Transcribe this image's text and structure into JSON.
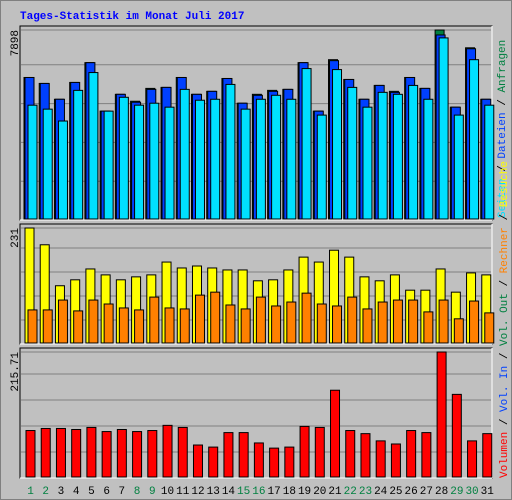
{
  "chart_data": [
    {
      "type": "bar",
      "title": "Tages-Statistik im Monat Juli 2017",
      "title_color": "#0000ff",
      "ylim": [
        0,
        7898
      ],
      "yticks": [
        7898
      ],
      "series": [
        {
          "name": "Anfragen",
          "color": "#008040",
          "values": [
            5903,
            5653,
            4988,
            5695,
            6526,
            4490,
            5196,
            4905,
            5445,
            5487,
            5903,
            5196,
            5321,
            5861,
            4822,
            5196,
            5362,
            5404,
            6526,
            4490,
            6651,
            5820,
            4988,
            5570,
            5321,
            5903,
            5445,
            7898,
            4656,
            7150,
            4988
          ]
        },
        {
          "name": "Dateien",
          "color": "#0040ff",
          "values": [
            5903,
            5653,
            4988,
            5695,
            6526,
            4490,
            5196,
            4864,
            5404,
            5487,
            5903,
            5196,
            5321,
            5861,
            4822,
            5155,
            5321,
            5404,
            6526,
            4490,
            6610,
            5820,
            4988,
            5570,
            5279,
            5903,
            5445,
            7690,
            4656,
            7110,
            4988
          ]
        },
        {
          "name": "Seiten",
          "color": "#00e0ff",
          "values": [
            4739,
            4573,
            4074,
            5362,
            6110,
            4490,
            5071,
            4739,
            4822,
            4656,
            5404,
            4947,
            4988,
            5612,
            4573,
            4988,
            5155,
            4988,
            6277,
            4323,
            6235,
            5487,
            4656,
            5279,
            5196,
            5570,
            4988,
            7566,
            4323,
            6651,
            4739
          ]
        }
      ]
    },
    {
      "type": "bar",
      "ylim": [
        0,
        231
      ],
      "yticks": [
        231
      ],
      "series": [
        {
          "name": "Besuche",
          "color": "#ffff00",
          "values": [
            231,
            197,
            114,
            126,
            148,
            136,
            126,
            132,
            136,
            162,
            150,
            154,
            150,
            146,
            146,
            124,
            126,
            146,
            172,
            162,
            186,
            172,
            132,
            124,
            136,
            105,
            105,
            148,
            101,
            140,
            136
          ]
        },
        {
          "name": "Rechner",
          "color": "#ff8000",
          "values": [
            65,
            65,
            85,
            63,
            85,
            77,
            69,
            65,
            91,
            69,
            67,
            95,
            101,
            75,
            67,
            91,
            73,
            81,
            99,
            77,
            73,
            91,
            67,
            81,
            85,
            85,
            61,
            85,
            47,
            83,
            59
          ]
        }
      ]
    },
    {
      "type": "bar",
      "ylim": [
        0,
        215.71
      ],
      "yticks": [
        215.71
      ],
      "series": [
        {
          "name": "Volumen",
          "color": "#ff0000",
          "values": [
            79.1,
            82.7,
            82.7,
            80.9,
            84.5,
            77.3,
            80.9,
            77.3,
            79.1,
            88.1,
            84.5,
            53.9,
            50.3,
            75.5,
            75.5,
            57.5,
            48.5,
            50.3,
            86.3,
            84.5,
            149.2,
            79.1,
            73.7,
            61.1,
            55.7,
            79.1,
            75.5,
            215.71,
            142.0,
            61.1,
            73.7
          ]
        }
      ],
      "extra_legend": [
        {
          "text": "Vol. In",
          "color": "#0040ff"
        },
        {
          "text": "Vol. Out",
          "color": "#008040"
        }
      ],
      "legend_separator": "/",
      "categories": [
        "1",
        "2",
        "3",
        "4",
        "5",
        "6",
        "7",
        "8",
        "9",
        "10",
        "11",
        "12",
        "13",
        "14",
        "15",
        "16",
        "17",
        "18",
        "19",
        "20",
        "21",
        "22",
        "23",
        "24",
        "25",
        "26",
        "27",
        "28",
        "29",
        "30",
        "31"
      ],
      "label_colors": [
        "#008040",
        "#008040",
        "#000000",
        "#000000",
        "#000000",
        "#000000",
        "#000000",
        "#008040",
        "#008040",
        "#000000",
        "#000000",
        "#000000",
        "#000000",
        "#000000",
        "#008040",
        "#008040",
        "#000000",
        "#000000",
        "#000000",
        "#000000",
        "#000000",
        "#008040",
        "#008040",
        "#000000",
        "#000000",
        "#000000",
        "#000000",
        "#000000",
        "#008040",
        "#008040",
        "#000000"
      ]
    }
  ]
}
